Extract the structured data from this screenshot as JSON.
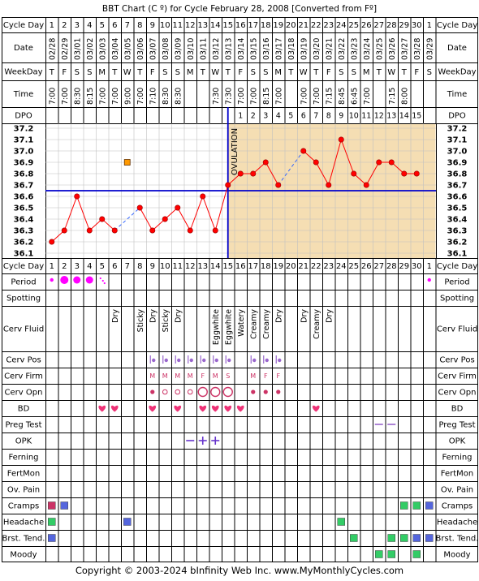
{
  "title": "BBT Chart (C º) for Cycle February 28, 2008  [Converted from Fº]",
  "footer": "Copyright © 2003-2024 bInfinity Web Inc.     www.MyMonthlyCycles.com",
  "ovulation_label": "OVULATION",
  "colors": {
    "border": "#000000",
    "grid": "#c0c0c0",
    "chart_pre": "#ffffff",
    "chart_post": "#f5deb3",
    "line": "#ff0000",
    "point_fill": "#ff0000",
    "dashed": "#3366ff",
    "coverline": "#0000cc",
    "ovulation": "#0000cc",
    "period": "#ff00ff",
    "bd": "#ee3377",
    "cerv_dot": "#9966cc",
    "cerv_firm": "#cc3366",
    "cerv_opn": "#cc3366",
    "preg_test": "#9966cc",
    "opk": "#6633cc",
    "cramps_pink": "#cc3366",
    "blue": "#5566dd",
    "green": "#33cc66"
  },
  "labels": {
    "cycle_day": "Cycle Day",
    "date": "Date",
    "weekday": "WeekDay",
    "time": "Time",
    "dpo": "DPO",
    "period": "Period",
    "spotting": "Spotting",
    "cerv_fluid": "Cerv Fluid",
    "cerv_pos": "Cerv Pos",
    "cerv_firm": "Cerv Firm",
    "cerv_opn": "Cerv Opn",
    "bd": "BD",
    "preg_test": "Preg Test",
    "opk": "OPK",
    "ferning": "Ferning",
    "fertmon": "FertMon",
    "ov_pain": "Ov. Pain",
    "cramps": "Cramps",
    "headache": "Headache",
    "brst_tend": "Brst. Tend.",
    "moody": "Moody"
  },
  "cycle_days": [
    "1",
    "2",
    "3",
    "4",
    "5",
    "6",
    "7",
    "8",
    "9",
    "10",
    "11",
    "12",
    "13",
    "14",
    "15",
    "16",
    "17",
    "18",
    "19",
    "20",
    "21",
    "22",
    "23",
    "24",
    "25",
    "26",
    "27",
    "28",
    "29",
    "30",
    "1"
  ],
  "dates": [
    "02/28",
    "02/29",
    "03/01",
    "03/02",
    "03/03",
    "03/04",
    "03/05",
    "03/06",
    "03/07",
    "03/08",
    "03/09",
    "03/10",
    "03/11",
    "03/12",
    "03/13",
    "03/14",
    "03/15",
    "03/16",
    "03/17",
    "03/18",
    "03/19",
    "03/20",
    "03/21",
    "03/22",
    "03/23",
    "03/24",
    "03/25",
    "03/26",
    "03/27",
    "03/28",
    "03/29"
  ],
  "weekdays": [
    "T",
    "F",
    "S",
    "S",
    "M",
    "T",
    "W",
    "T",
    "F",
    "S",
    "S",
    "M",
    "T",
    "W",
    "T",
    "F",
    "S",
    "S",
    "M",
    "T",
    "W",
    "T",
    "F",
    "S",
    "S",
    "M",
    "T",
    "W",
    "T",
    "F",
    "S"
  ],
  "times": [
    "7:00",
    "7:00",
    "8:30",
    "8:15",
    "7:00",
    "7:00",
    "9:00",
    "7:00",
    "7:10",
    "8:30",
    "8:30",
    "",
    "",
    "7:30",
    "7:30",
    "7:00",
    "7:00",
    "8:15",
    "7:00",
    "",
    "7:00",
    "7:00",
    "7:15",
    "8:45",
    "6:45",
    "7:00",
    "",
    "7:15",
    "8:00",
    "",
    ""
  ],
  "dpo": [
    "",
    "",
    "",
    "",
    "",
    "",
    "",
    "",
    "",
    "",
    "",
    "",
    "",
    "",
    "",
    "1",
    "2",
    "3",
    "4",
    "5",
    "6",
    "7",
    "8",
    "9",
    "10",
    "11",
    "12",
    "13",
    "14",
    "15",
    ""
  ],
  "cerv_fluid": [
    "",
    "",
    "",
    "",
    "",
    "Dry",
    "",
    "Sticky",
    "Dry",
    "Sticky",
    "Dry",
    "",
    "",
    "Eggwhite",
    "Eggwhite",
    "Watery",
    "Creamy",
    "Creamy",
    "Dry",
    "",
    "Dry",
    "Creamy",
    "Dry",
    "",
    "",
    "",
    "",
    "",
    "",
    "",
    ""
  ],
  "cerv_firm": [
    "",
    "",
    "",
    "",
    "",
    "",
    "",
    "",
    "M",
    "M",
    "M",
    "M",
    "F",
    "M",
    "S",
    "",
    "M",
    "F",
    "F",
    "",
    "",
    "",
    "",
    "",
    "",
    "",
    "",
    "",
    "",
    "",
    ""
  ],
  "cerv_opn": [
    "",
    "",
    "",
    "",
    "",
    "",
    "",
    "",
    "o",
    "o",
    "o",
    "o",
    "O",
    "O",
    "O",
    "",
    "o",
    "o",
    "o",
    "",
    "",
    "",
    "",
    "",
    "",
    "",
    "",
    "",
    "",
    "",
    ""
  ],
  "chart_data": {
    "type": "line",
    "x": [
      1,
      2,
      3,
      4,
      5,
      6,
      7,
      8,
      9,
      10,
      11,
      12,
      13,
      14,
      15,
      16,
      17,
      18,
      19,
      20,
      21,
      22,
      23,
      24,
      25,
      26,
      27,
      28,
      29,
      30
    ],
    "series": [
      {
        "values": [
          36.2,
          36.3,
          36.6,
          36.3,
          36.4,
          36.3,
          null,
          36.5,
          36.3,
          36.4,
          36.5,
          36.3,
          36.6,
          36.3,
          36.7,
          36.8,
          36.8,
          36.9,
          36.7,
          null,
          37.0,
          36.9,
          36.7,
          37.1,
          36.8,
          36.7,
          36.9,
          36.9,
          36.8,
          36.8
        ]
      }
    ],
    "outlier": {
      "x": 7,
      "y": 36.9
    },
    "coverline": 36.65,
    "ovulation_day": 15,
    "ylim": [
      36.1,
      37.2
    ],
    "yticks": [
      "37.2",
      "37.1",
      "37.0",
      "36.9",
      "36.8",
      "36.7",
      "36.6",
      "36.5",
      "36.4",
      "36.3",
      "36.2",
      "36.1"
    ]
  }
}
